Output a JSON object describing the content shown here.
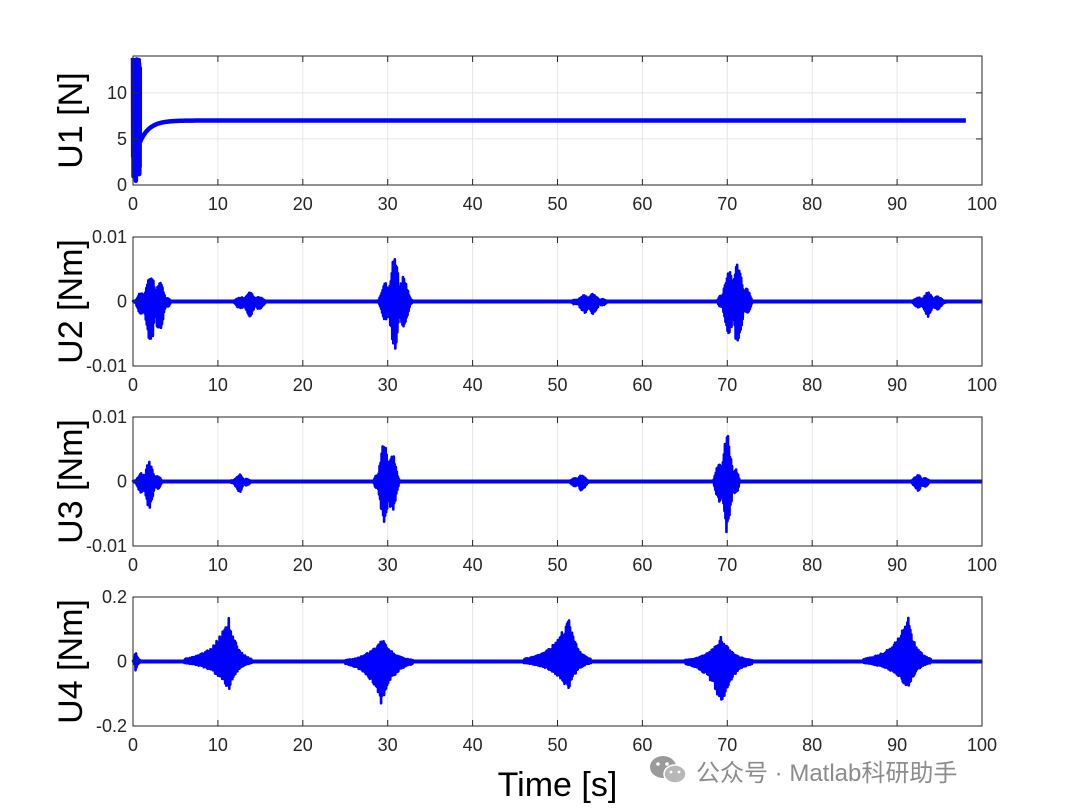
{
  "chart_data": [
    {
      "type": "line",
      "ylabel": "U1 [N]",
      "xlim": [
        0,
        100
      ],
      "ylim": [
        0,
        14
      ],
      "xticks": [
        "0",
        "10",
        "20",
        "30",
        "40",
        "50",
        "60",
        "70",
        "80",
        "90",
        "100"
      ],
      "yticks": [
        {
          "value": 0,
          "label": "0"
        },
        {
          "value": 5,
          "label": "5"
        },
        {
          "value": 10,
          "label": "10"
        }
      ],
      "grid": true,
      "color": "#0000ff",
      "series": [
        {
          "values_description_free": true,
          "x": [
            0,
            0.1,
            0.2,
            0.3,
            0.4,
            0.5,
            0.6,
            0.7,
            0.8,
            1.0,
            1.5,
            2,
            3,
            4,
            5,
            7,
            10,
            20,
            50,
            100
          ],
          "y": [
            0,
            14,
            0.5,
            14,
            5,
            13,
            4.5,
            5.2,
            4.8,
            5.5,
            6.0,
            6.4,
            6.8,
            6.95,
            7.0,
            7.0,
            7.0,
            7.0,
            7.0,
            7.0
          ]
        }
      ]
    },
    {
      "type": "line",
      "ylabel": "U2 [Nm]",
      "xlim": [
        0,
        100
      ],
      "ylim": [
        -0.01,
        0.01
      ],
      "xticks": [
        "0",
        "10",
        "20",
        "30",
        "40",
        "50",
        "60",
        "70",
        "80",
        "90",
        "100"
      ],
      "yticks": [
        {
          "value": -0.01,
          "label": "-0.01"
        },
        {
          "value": 0,
          "label": "0"
        },
        {
          "value": 0.01,
          "label": "0.01"
        }
      ],
      "grid": true,
      "color": "#0000ff",
      "bursts": [
        {
          "x": [
            0.2,
            4.5
          ],
          "pos": 0.005,
          "neg": -0.0075
        },
        {
          "x": [
            11.5,
            16
          ],
          "pos": 0.0015,
          "neg": -0.0025
        },
        {
          "x": [
            28.8,
            33
          ],
          "pos": 0.0077,
          "neg": -0.008
        },
        {
          "x": [
            51.5,
            56
          ],
          "pos": 0.0015,
          "neg": -0.0025
        },
        {
          "x": [
            68.8,
            73
          ],
          "pos": 0.0077,
          "neg": -0.008
        },
        {
          "x": [
            91.5,
            96
          ],
          "pos": 0.0015,
          "neg": -0.0025
        }
      ]
    },
    {
      "type": "line",
      "ylabel": "U3 [Nm]",
      "xlim": [
        0,
        100
      ],
      "ylim": [
        -0.01,
        0.01
      ],
      "xticks": [
        "0",
        "10",
        "20",
        "30",
        "40",
        "50",
        "60",
        "70",
        "80",
        "90",
        "100"
      ],
      "yticks": [
        {
          "value": -0.01,
          "label": "-0.01"
        },
        {
          "value": 0,
          "label": "0"
        },
        {
          "value": 0.01,
          "label": "0.01"
        }
      ],
      "grid": true,
      "color": "#0000ff",
      "bursts": [
        {
          "x": [
            0.2,
            3.5
          ],
          "pos": 0.0033,
          "neg": -0.0045
        },
        {
          "x": [
            11.3,
            14
          ],
          "pos": 0.0012,
          "neg": -0.0018
        },
        {
          "x": [
            28.3,
            31.5
          ],
          "pos": 0.008,
          "neg": -0.0085
        },
        {
          "x": [
            51.3,
            54
          ],
          "pos": 0.0012,
          "neg": -0.0018
        },
        {
          "x": [
            68.3,
            71.5
          ],
          "pos": 0.008,
          "neg": -0.0085
        },
        {
          "x": [
            91.3,
            94
          ],
          "pos": 0.0012,
          "neg": -0.0018
        }
      ]
    },
    {
      "type": "line",
      "ylabel": "U4 [Nm]",
      "xlabel": "Time [s]",
      "xlim": [
        0,
        100
      ],
      "ylim": [
        -0.2,
        0.2
      ],
      "xticks": [
        "0",
        "10",
        "20",
        "30",
        "40",
        "50",
        "60",
        "70",
        "80",
        "90",
        "100"
      ],
      "yticks": [
        {
          "value": -0.2,
          "label": "-0.2"
        },
        {
          "value": 0,
          "label": "0"
        },
        {
          "value": 0.2,
          "label": "0.2"
        }
      ],
      "grid": true,
      "color": "#0000ff",
      "bursts": [
        {
          "x": [
            0,
            1
          ],
          "pos": 0.04,
          "neg": -0.03,
          "peak": 0.3
        },
        {
          "x": [
            6,
            14
          ],
          "pos": 0.14,
          "neg": -0.09,
          "peak": 11.3
        },
        {
          "x": [
            25,
            33
          ],
          "pos": 0.08,
          "neg": -0.14,
          "peak": 29.3
        },
        {
          "x": [
            46,
            54
          ],
          "pos": 0.14,
          "neg": -0.09,
          "peak": 51.3
        },
        {
          "x": [
            65,
            73
          ],
          "pos": 0.08,
          "neg": -0.14,
          "peak": 69.3
        },
        {
          "x": [
            86,
            94
          ],
          "pos": 0.14,
          "neg": -0.09,
          "peak": 91.3
        }
      ]
    }
  ],
  "watermark": {
    "text": "公众号 · Matlab科研助手",
    "icon": "wechat-icon"
  }
}
